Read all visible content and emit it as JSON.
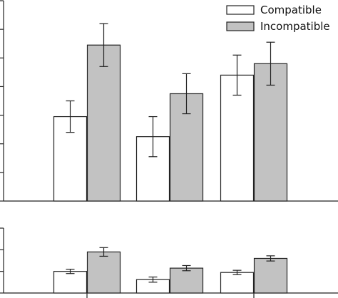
{
  "colors": {
    "compatible": "#ffffff",
    "incompatible": "#c2c2c2",
    "stroke": "#222222"
  },
  "chart_data": [
    {
      "type": "bar",
      "panel": "top",
      "legend": {
        "placement": "top-right",
        "entries": [
          "Compatible",
          "Incompatible"
        ]
      },
      "ylim": [
        0,
        7
      ],
      "y_ticks": [
        0,
        1,
        2,
        3,
        4,
        5,
        6,
        7
      ],
      "y_tick_labels_visible": false,
      "categories": [
        "",
        "",
        ""
      ],
      "series": [
        {
          "name": "Compatible",
          "values": [
            2.95,
            2.25,
            4.4
          ],
          "errors": [
            0.55,
            0.7,
            0.7
          ]
        },
        {
          "name": "Incompatible",
          "values": [
            5.45,
            3.75,
            4.8
          ],
          "errors": [
            0.75,
            0.7,
            0.75
          ]
        }
      ]
    },
    {
      "type": "bar",
      "panel": "bottom",
      "ylim": [
        0,
        3
      ],
      "y_ticks": [
        0,
        1,
        2,
        3
      ],
      "y_tick_labels_visible": false,
      "categories": [
        "",
        "",
        ""
      ],
      "series": [
        {
          "name": "Compatible",
          "values": [
            1.0,
            0.62,
            0.95
          ],
          "errors": [
            0.1,
            0.12,
            0.1
          ]
        },
        {
          "name": "Incompatible",
          "values": [
            1.9,
            1.15,
            1.6
          ],
          "errors": [
            0.2,
            0.12,
            0.12
          ]
        }
      ]
    }
  ]
}
